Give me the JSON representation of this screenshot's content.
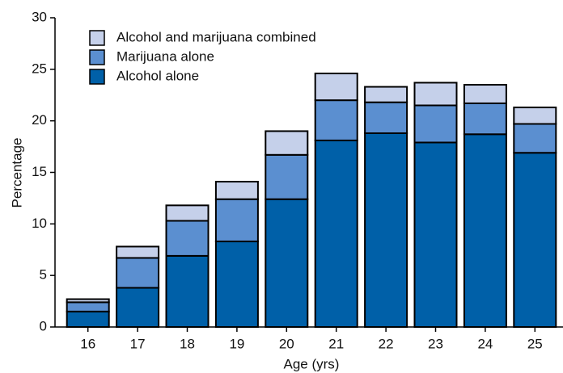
{
  "chart_data": {
    "type": "stacked-bar",
    "xlabel": "Age (yrs)",
    "ylabel": "Percentage",
    "categories": [
      "16",
      "17",
      "18",
      "19",
      "20",
      "21",
      "22",
      "23",
      "24",
      "25"
    ],
    "series": [
      {
        "name": "Alcohol alone",
        "color": "#0060a8",
        "values": [
          1.5,
          3.8,
          6.9,
          8.3,
          12.4,
          18.1,
          18.8,
          17.9,
          18.7,
          16.9
        ]
      },
      {
        "name": "Marijuana alone",
        "color": "#5b8fd0",
        "values": [
          0.9,
          2.9,
          3.4,
          4.1,
          4.3,
          3.9,
          3.0,
          3.6,
          3.0,
          2.8
        ]
      },
      {
        "name": "Alcohol and marijuana combined",
        "color": "#c5d0ea",
        "values": [
          0.3,
          1.1,
          1.5,
          1.7,
          2.3,
          2.6,
          1.5,
          2.2,
          1.8,
          1.6
        ]
      }
    ],
    "ylim": [
      0,
      30
    ],
    "yticks": [
      0,
      5,
      10,
      15,
      20,
      25,
      30
    ],
    "legend": "upper-left"
  }
}
